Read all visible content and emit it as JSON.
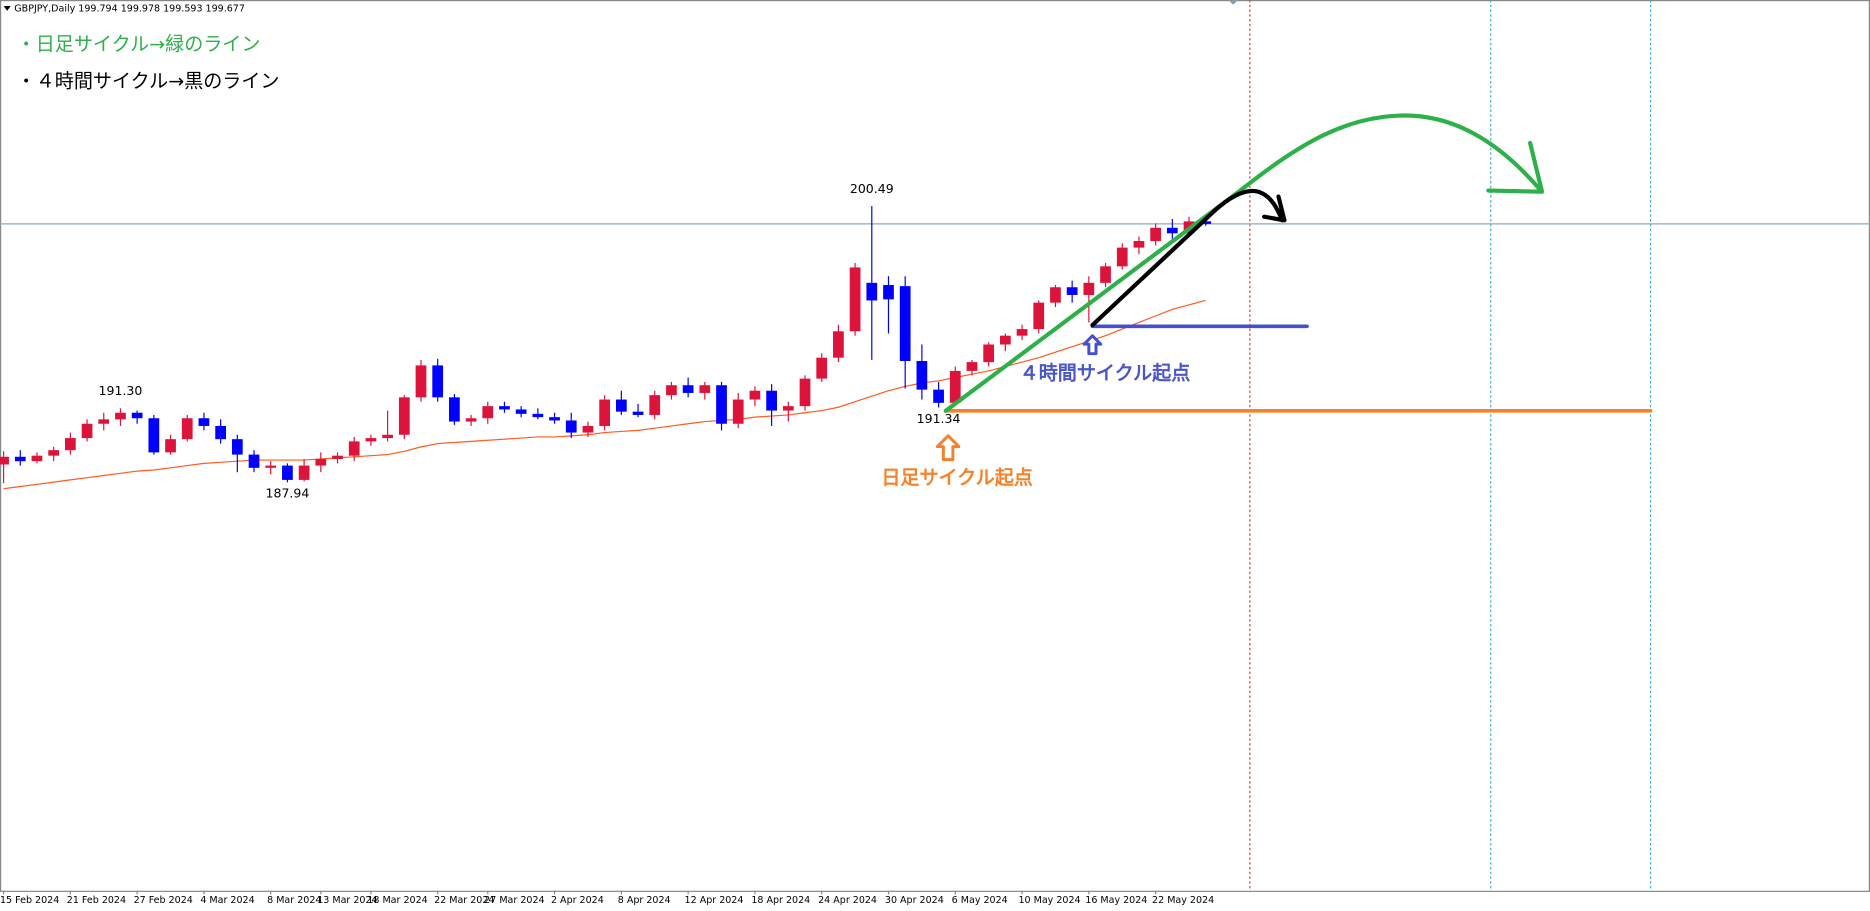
{
  "chart_data": {
    "type": "candlestick",
    "symbol": "GBPJPY,Daily",
    "notes": [
      "・日足サイクル→緑のライン",
      "・４時間サイクル→黒のライン"
    ],
    "annotations": [
      "４時間サイクル起点",
      "日足サイクル起点"
    ],
    "categories": [
      "15 Feb 2024",
      null,
      null,
      null,
      "21 Feb 2024",
      null,
      null,
      null,
      "27 Feb 2024",
      null,
      null,
      null,
      "4 Mar 2024",
      null,
      null,
      null,
      "8 Mar 2024",
      null,
      null,
      "13 Mar 2024",
      null,
      null,
      "18 Mar 2024",
      null,
      null,
      null,
      "22 Mar 2024",
      null,
      null,
      "27 Mar 2024",
      null,
      null,
      null,
      "2 Apr 2024",
      null,
      null,
      null,
      "8 Apr 2024",
      null,
      null,
      null,
      "12 Apr 2024",
      null,
      null,
      null,
      "18 Apr 2024",
      null,
      null,
      null,
      "24 Apr 2024",
      null,
      null,
      null,
      "30 Apr 2024",
      null,
      null,
      null,
      "6 May 2024",
      null,
      null,
      null,
      "10 May 2024",
      null,
      null,
      null,
      "16 May 2024",
      null,
      null,
      null,
      "22 May 2024",
      null,
      null,
      null
    ],
    "open": [
      188.75,
      189.1,
      188.9,
      189.15,
      189.4,
      189.95,
      190.6,
      190.8,
      191.1,
      190.85,
      189.3,
      189.9,
      190.85,
      190.5,
      189.9,
      189.2,
      188.6,
      188.7,
      188.05,
      188.7,
      189.0,
      189.15,
      189.8,
      189.95,
      190.1,
      191.8,
      193.25,
      191.8,
      190.7,
      190.85,
      191.4,
      191.25,
      191.05,
      190.9,
      190.75,
      190.2,
      190.5,
      191.7,
      191.15,
      191.0,
      191.9,
      192.35,
      192.0,
      192.35,
      190.6,
      191.7,
      192.1,
      191.2,
      191.4,
      192.65,
      193.6,
      194.8,
      197.0,
      196.9,
      196.85,
      193.45,
      192.15,
      191.55,
      193.0,
      193.4,
      194.2,
      194.6,
      194.9,
      196.1,
      196.8,
      196.45,
      197.0,
      197.75,
      198.6,
      198.9,
      199.5,
      199.25,
      199.794
    ],
    "high": [
      189.35,
      189.4,
      189.3,
      189.55,
      190.2,
      190.8,
      191.1,
      191.3,
      191.2,
      191.0,
      190.1,
      191.0,
      191.1,
      190.8,
      190.1,
      189.4,
      188.9,
      188.8,
      189.0,
      189.3,
      189.3,
      190.0,
      190.1,
      191.2,
      191.9,
      193.5,
      193.55,
      191.95,
      191.0,
      191.6,
      191.6,
      191.4,
      191.3,
      191.1,
      191.1,
      190.7,
      191.9,
      192.1,
      191.5,
      192.1,
      192.5,
      192.7,
      192.5,
      192.5,
      192.0,
      192.3,
      192.4,
      191.6,
      192.8,
      193.8,
      195.1,
      197.9,
      200.49,
      197.3,
      197.3,
      194.2,
      192.5,
      193.2,
      193.5,
      194.3,
      194.7,
      195.1,
      196.2,
      196.9,
      197.1,
      197.3,
      197.9,
      198.8,
      199.1,
      199.7,
      199.9,
      200.0,
      199.978
    ],
    "low": [
      187.9,
      188.7,
      188.8,
      188.9,
      189.2,
      189.8,
      190.3,
      190.5,
      190.6,
      189.2,
      189.2,
      189.8,
      190.3,
      189.7,
      188.4,
      188.4,
      188.3,
      187.94,
      187.98,
      188.4,
      188.8,
      188.9,
      189.6,
      189.8,
      189.9,
      191.6,
      191.6,
      190.55,
      190.5,
      190.6,
      191.1,
      190.9,
      190.8,
      190.6,
      189.95,
      190.0,
      190.3,
      191.0,
      190.9,
      190.8,
      191.7,
      191.8,
      191.7,
      190.3,
      190.4,
      191.4,
      190.5,
      190.7,
      191.2,
      192.5,
      193.4,
      194.6,
      193.5,
      194.7,
      192.2,
      191.7,
      191.34,
      191.5,
      192.8,
      193.2,
      193.9,
      194.4,
      194.7,
      195.9,
      196.1,
      195.2,
      196.8,
      197.6,
      198.3,
      198.7,
      199.0,
      199.1,
      199.593
    ],
    "close": [
      189.1,
      188.9,
      189.15,
      189.4,
      189.95,
      190.6,
      190.8,
      191.1,
      190.85,
      189.3,
      189.9,
      190.85,
      190.5,
      189.9,
      189.2,
      188.6,
      188.7,
      188.05,
      188.7,
      189.0,
      189.15,
      189.8,
      189.95,
      190.1,
      191.8,
      193.25,
      191.8,
      190.7,
      190.85,
      191.4,
      191.25,
      191.05,
      190.9,
      190.75,
      190.2,
      190.5,
      191.7,
      191.15,
      191.0,
      191.9,
      192.35,
      192.0,
      192.35,
      190.6,
      191.7,
      192.1,
      191.2,
      191.4,
      192.65,
      193.6,
      194.8,
      197.7,
      196.2,
      196.25,
      193.45,
      192.15,
      191.55,
      193.0,
      193.4,
      194.2,
      194.6,
      194.9,
      196.1,
      196.8,
      196.45,
      197.0,
      197.75,
      198.6,
      198.9,
      199.5,
      199.25,
      199.79,
      199.677
    ],
    "high_labels": [
      null,
      null,
      null,
      null,
      null,
      null,
      null,
      "191.30",
      null,
      null,
      null,
      null,
      null,
      null,
      null,
      null,
      null,
      null,
      null,
      null,
      null,
      null,
      null,
      null,
      null,
      null,
      null,
      null,
      null,
      null,
      null,
      null,
      null,
      null,
      null,
      null,
      null,
      null,
      null,
      null,
      null,
      null,
      null,
      null,
      null,
      null,
      null,
      null,
      null,
      null,
      null,
      null,
      "200.49",
      null,
      null,
      null,
      null,
      null,
      null,
      null,
      null,
      null,
      null,
      null,
      null,
      null,
      null,
      null,
      null,
      null,
      null,
      null,
      null
    ],
    "low_labels": [
      null,
      null,
      null,
      null,
      null,
      null,
      null,
      null,
      null,
      null,
      null,
      null,
      null,
      null,
      null,
      null,
      null,
      "187.94",
      null,
      null,
      null,
      null,
      null,
      null,
      null,
      null,
      null,
      null,
      null,
      null,
      null,
      null,
      null,
      null,
      null,
      null,
      null,
      null,
      null,
      null,
      null,
      null,
      null,
      null,
      null,
      null,
      null,
      null,
      null,
      null,
      null,
      null,
      null,
      null,
      null,
      null,
      "191.34",
      null,
      null,
      null,
      null,
      null,
      null,
      null,
      null,
      null,
      null,
      null,
      null,
      null,
      null,
      null,
      null
    ],
    "up_color": "#dc143c",
    "down_color": "#0000ff",
    "ma": {
      "color": "#ff5a1f",
      "values": [
        187.65,
        187.75,
        187.85,
        187.95,
        188.05,
        188.15,
        188.25,
        188.35,
        188.45,
        188.5,
        188.6,
        188.7,
        188.8,
        188.85,
        188.9,
        188.95,
        188.95,
        188.95,
        188.95,
        189.0,
        189.05,
        189.1,
        189.15,
        189.2,
        189.35,
        189.55,
        189.7,
        189.75,
        189.8,
        189.85,
        189.9,
        189.95,
        190.0,
        190.0,
        190.05,
        190.1,
        190.2,
        190.25,
        190.3,
        190.4,
        190.5,
        190.6,
        190.7,
        190.75,
        190.8,
        190.9,
        190.95,
        191.0,
        191.1,
        191.2,
        191.35,
        191.6,
        191.85,
        192.1,
        192.3,
        192.45,
        192.55,
        192.7,
        192.85,
        193.0,
        193.2,
        193.4,
        193.6,
        193.85,
        194.1,
        194.35,
        194.6,
        194.9,
        195.2,
        195.5,
        195.8,
        196.0,
        196.2
      ]
    },
    "bid_line_color": "#8fa9bd",
    "ylim": [
      169.39,
      209.846
    ]
  }
}
